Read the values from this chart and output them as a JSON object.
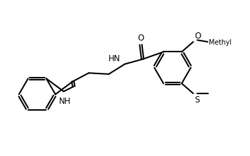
{
  "bg_color": "#ffffff",
  "line_color": "#000000",
  "line_width": 1.5,
  "font_size": 8.5,
  "fig_width": 3.64,
  "fig_height": 2.28,
  "dpi": 100,
  "xlim": [
    0,
    11
  ],
  "ylim": [
    0,
    7
  ]
}
